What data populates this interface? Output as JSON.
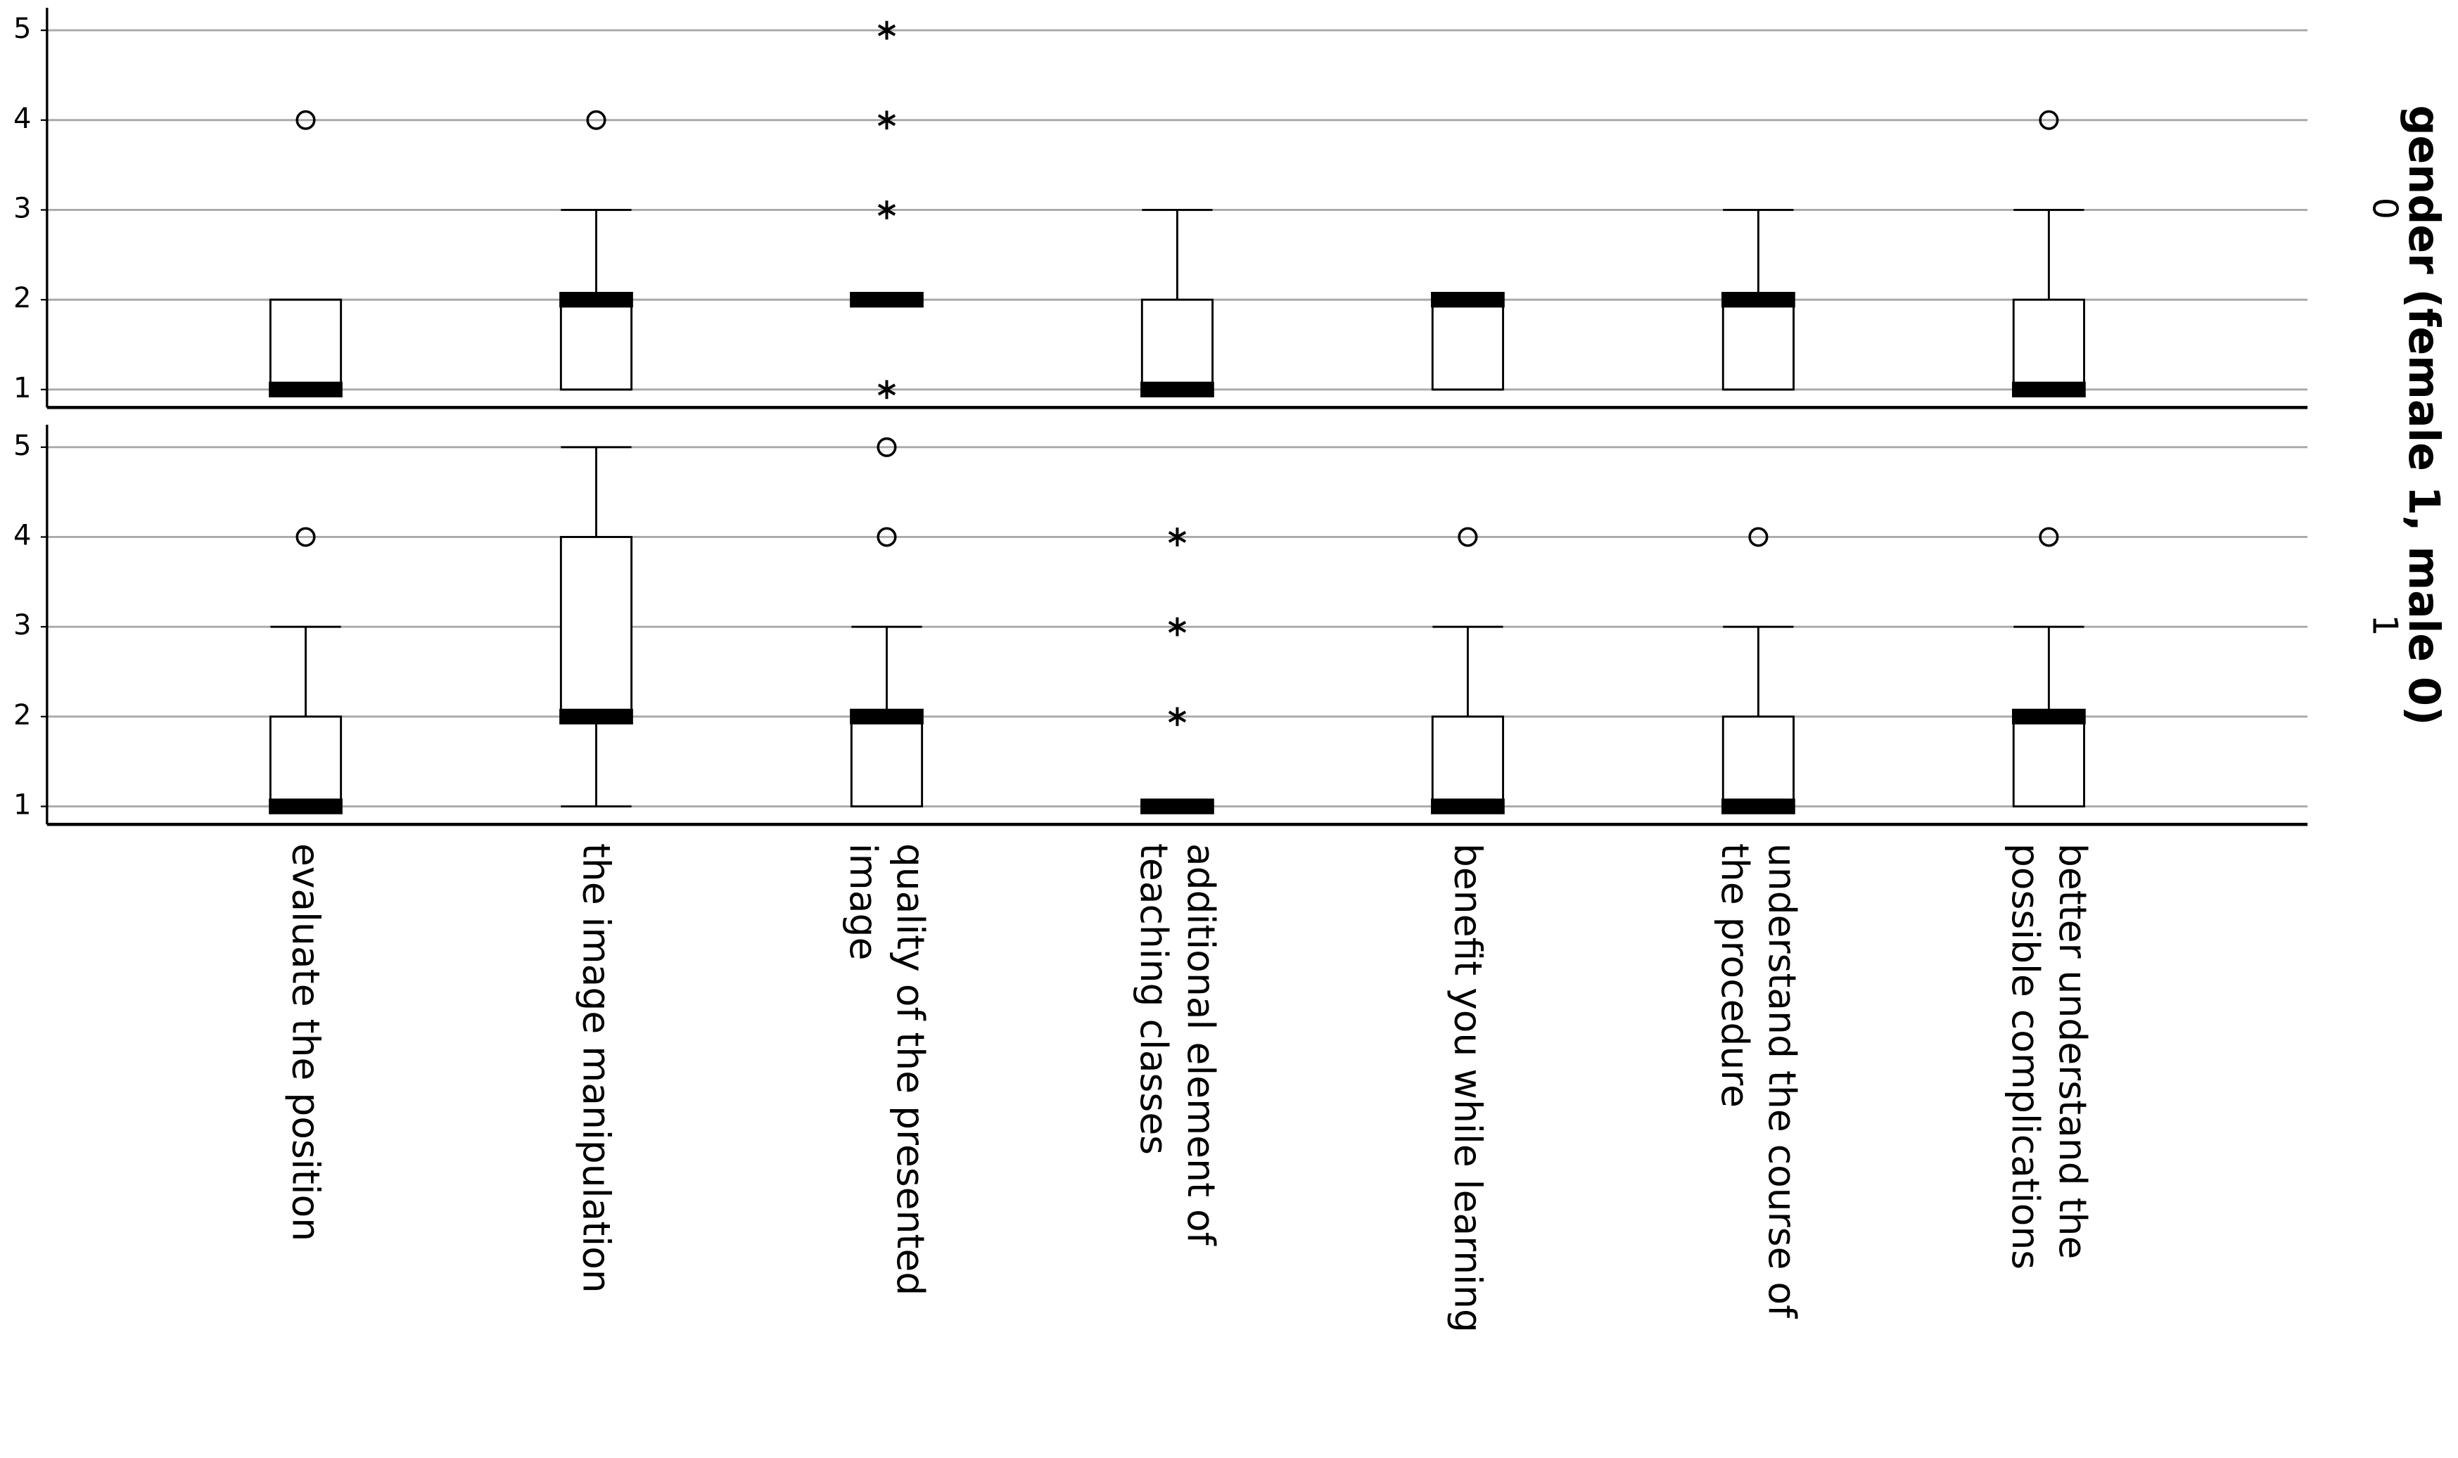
{
  "chart_data": {
    "type": "boxplot",
    "row_label": "gender (female 1,  male 0)",
    "categories": [
      "evaluate the position",
      "the image manipulation",
      "quality of the presented\nimage",
      "additional element of\nteaching classes",
      "benefit you while learning",
      "understand the course of\nthe procedure",
      "better understand the\npossible complications"
    ],
    "ylim": [
      0.8,
      5.25
    ],
    "yticks": [
      1,
      2,
      3,
      4,
      5
    ],
    "grid": true,
    "box_color": "#ffffff",
    "line_color": "#000000",
    "grid_color": "#a9a9a9",
    "panels": [
      {
        "name": "0",
        "boxes": [
          {
            "min": 1,
            "q1": 1,
            "median": 1,
            "q3": 2,
            "max": 2,
            "outliers": [
              4
            ],
            "extremes": []
          },
          {
            "min": 1,
            "q1": 1,
            "median": 2,
            "q3": 2,
            "max": 3,
            "outliers": [
              4
            ],
            "extremes": []
          },
          {
            "min": 2,
            "q1": 2,
            "median": 2,
            "q3": 2,
            "max": 2,
            "outliers": [],
            "extremes": [
              5,
              4,
              3,
              1
            ]
          },
          {
            "min": 1,
            "q1": 1,
            "median": 1,
            "q3": 2,
            "max": 3,
            "outliers": [],
            "extremes": []
          },
          {
            "min": 1,
            "q1": 1,
            "median": 2,
            "q3": 2,
            "max": 2,
            "outliers": [],
            "extremes": []
          },
          {
            "min": 1,
            "q1": 1,
            "median": 2,
            "q3": 2,
            "max": 3,
            "outliers": [],
            "extremes": []
          },
          {
            "min": 1,
            "q1": 1,
            "median": 1,
            "q3": 2,
            "max": 3,
            "outliers": [
              4
            ],
            "extremes": []
          }
        ]
      },
      {
        "name": "1",
        "boxes": [
          {
            "min": 1,
            "q1": 1,
            "median": 1,
            "q3": 2,
            "max": 3,
            "outliers": [
              4
            ],
            "extremes": []
          },
          {
            "min": 1,
            "q1": 2,
            "median": 2,
            "q3": 4,
            "max": 5,
            "outliers": [],
            "extremes": []
          },
          {
            "min": 1,
            "q1": 1,
            "median": 2,
            "q3": 2,
            "max": 3,
            "outliers": [
              5,
              4
            ],
            "extremes": []
          },
          {
            "min": 1,
            "q1": 1,
            "median": 1,
            "q3": 1,
            "max": 1,
            "outliers": [],
            "extremes": [
              4,
              3,
              2
            ]
          },
          {
            "min": 1,
            "q1": 1,
            "median": 1,
            "q3": 2,
            "max": 3,
            "outliers": [
              4
            ],
            "extremes": []
          },
          {
            "min": 1,
            "q1": 1,
            "median": 1,
            "q3": 2,
            "max": 3,
            "outliers": [
              4
            ],
            "extremes": []
          },
          {
            "min": 1,
            "q1": 1,
            "median": 2,
            "q3": 2,
            "max": 3,
            "outliers": [
              4
            ],
            "extremes": []
          }
        ]
      }
    ]
  }
}
